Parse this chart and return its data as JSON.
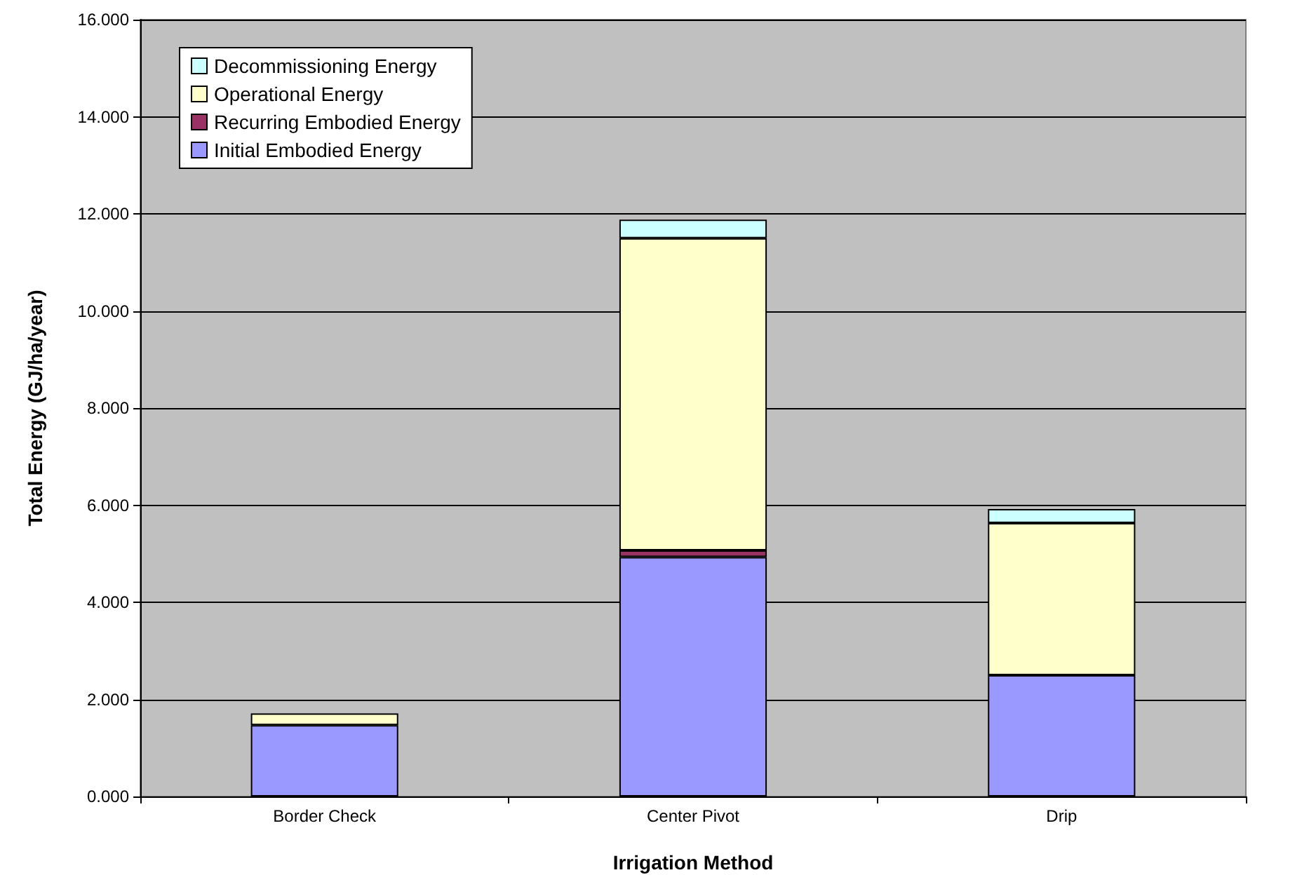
{
  "chart_data": {
    "type": "bar",
    "stacked": true,
    "xlabel": "Irrigation Method",
    "ylabel": "Total Energy (GJ/ha/year)",
    "categories": [
      "Border Check",
      "Center Pivot",
      "Drip"
    ],
    "series": [
      {
        "name": "Initial Embodied Energy",
        "color": "#9999ff",
        "values": [
          1.47,
          4.93,
          2.5
        ]
      },
      {
        "name": "Recurring Embodied Energy",
        "color": "#993366",
        "values": [
          null,
          0.14,
          null
        ]
      },
      {
        "name": "Operational Energy",
        "color": "#ffffcc",
        "values": [
          0.24,
          6.43,
          3.13
        ]
      },
      {
        "name": "Decommissioning Energy",
        "color": "#ccffff",
        "values": [
          null,
          0.38,
          0.29
        ]
      }
    ],
    "ylim": [
      0,
      16
    ],
    "yticks": [
      {
        "value": 0,
        "label": "0.000"
      },
      {
        "value": 2,
        "label": "2.000"
      },
      {
        "value": 4,
        "label": "4.000"
      },
      {
        "value": 6,
        "label": "6.000"
      },
      {
        "value": 8,
        "label": "8.000"
      },
      {
        "value": 10,
        "label": "10.000"
      },
      {
        "value": 12,
        "label": "12.000"
      },
      {
        "value": 14,
        "label": "14.000"
      },
      {
        "value": 16,
        "label": "16.000"
      }
    ],
    "grid": "y",
    "legend": "top left"
  }
}
